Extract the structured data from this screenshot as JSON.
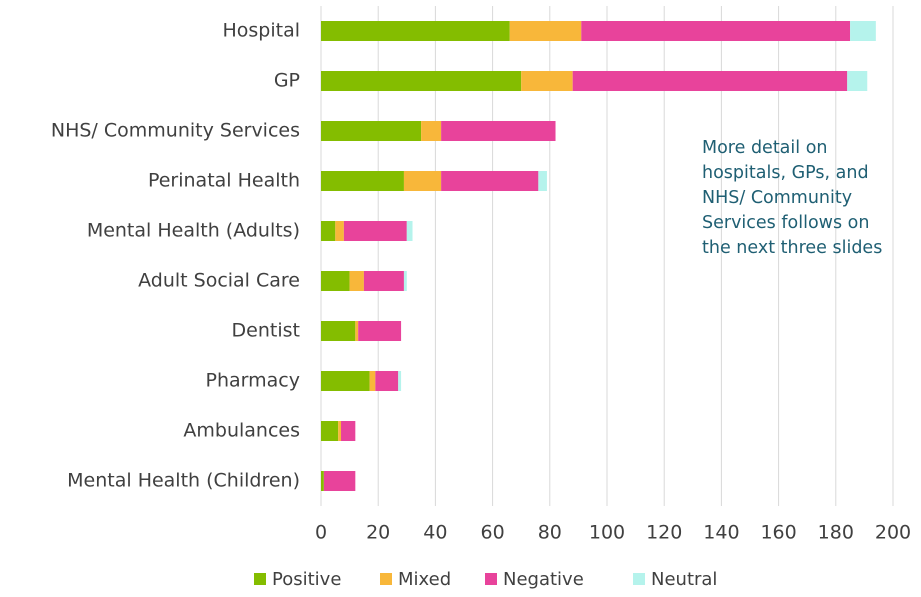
{
  "chart_data": {
    "type": "stacked_bar_horizontal",
    "categories": [
      "Hospital",
      "GP",
      "NHS/ Community Services",
      "Perinatal Health",
      "Mental Health (Adults)",
      "Adult Social Care",
      "Dentist",
      "Pharmacy",
      "Ambulances",
      "Mental Health (Children)"
    ],
    "series": [
      {
        "name": "Positive",
        "color": "#84bd00",
        "values": [
          66,
          70,
          35,
          29,
          5,
          10,
          12,
          17,
          6,
          1
        ]
      },
      {
        "name": "Mixed",
        "color": "#f8b73a",
        "values": [
          25,
          18,
          7,
          13,
          3,
          5,
          1,
          2,
          1,
          0
        ]
      },
      {
        "name": "Negative",
        "color": "#e8439b",
        "values": [
          94,
          96,
          40,
          34,
          22,
          14,
          15,
          8,
          5,
          11
        ]
      },
      {
        "name": "Neutral",
        "color": "#b5f3ec",
        "values": [
          9,
          7,
          0,
          3,
          2,
          1,
          0,
          1,
          0,
          0
        ]
      }
    ],
    "xlim": [
      0,
      200
    ],
    "xticks": [
      0,
      20,
      40,
      60,
      80,
      100,
      120,
      140,
      160,
      180,
      200
    ],
    "grid": true,
    "legend": "bottom",
    "annotation": [
      "More detail on",
      "hospitals, GPs, and",
      "NHS/ Community",
      "Services follows on",
      "the next three slides"
    ]
  }
}
